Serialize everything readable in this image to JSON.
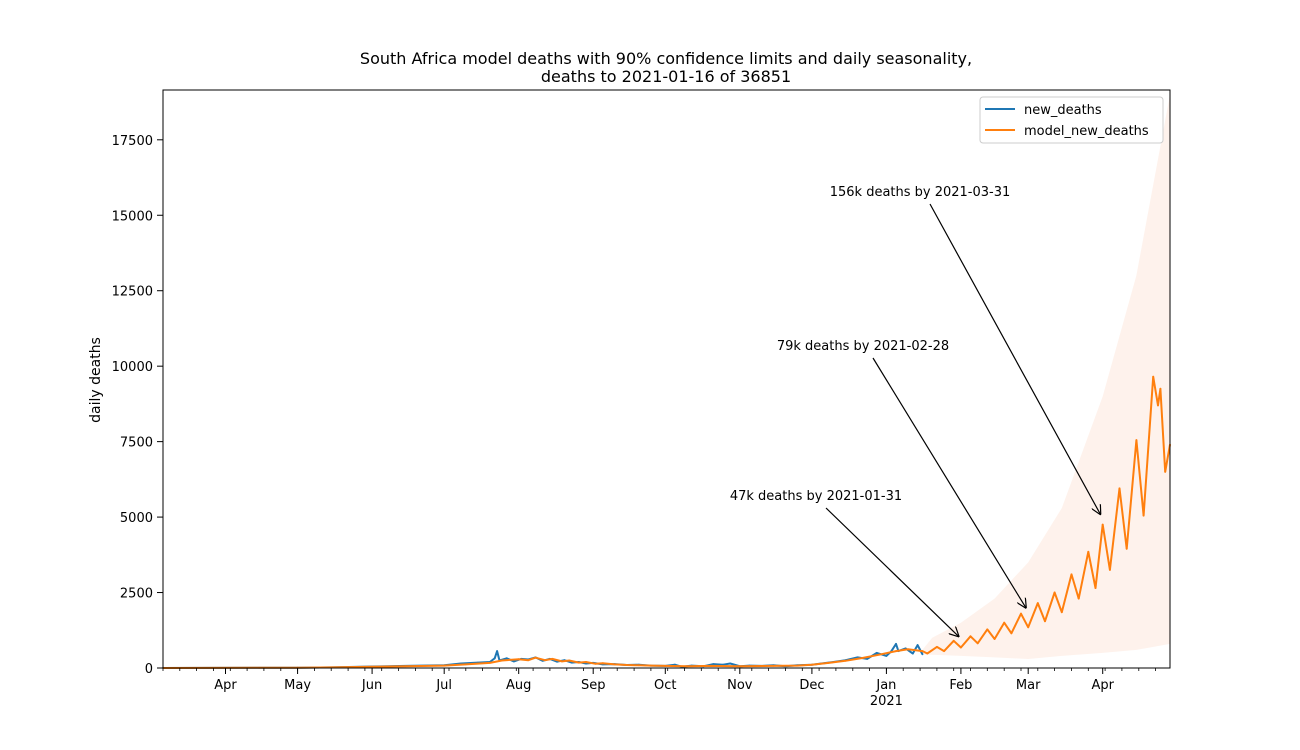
{
  "chart_data": {
    "type": "line",
    "title_line1": "South Africa model deaths with 90% confidence limits and daily seasonality,",
    "title_line2": "deaths to 2021-01-16 of 36851",
    "ylabel": "daily deaths",
    "xlabel": "",
    "ylim": [
      0,
      19150
    ],
    "xlim": [
      "2020-03-06",
      "2021-04-29"
    ],
    "yticks": [
      0,
      2500,
      5000,
      7500,
      10000,
      12500,
      15000,
      17500
    ],
    "xticks": [
      {
        "date": "2020-04-01",
        "label": "Apr"
      },
      {
        "date": "2020-05-01",
        "label": "May"
      },
      {
        "date": "2020-06-01",
        "label": "Jun"
      },
      {
        "date": "2020-07-01",
        "label": "Jul"
      },
      {
        "date": "2020-08-01",
        "label": "Aug"
      },
      {
        "date": "2020-09-01",
        "label": "Sep"
      },
      {
        "date": "2020-10-01",
        "label": "Oct"
      },
      {
        "date": "2020-11-01",
        "label": "Nov"
      },
      {
        "date": "2020-12-01",
        "label": "Dec"
      },
      {
        "date": "2021-01-01",
        "label": "Jan"
      },
      {
        "date": "2021-02-01",
        "label": "Feb"
      },
      {
        "date": "2021-03-01",
        "label": "Mar"
      },
      {
        "date": "2021-04-01",
        "label": "Apr"
      }
    ],
    "year_label": {
      "date": "2021-01-01",
      "label": "2021"
    },
    "grid": false,
    "legend_position": "top-right",
    "series": [
      {
        "name": "new_deaths",
        "color": "#1f77b4",
        "points": [
          [
            "2020-03-06",
            0
          ],
          [
            "2020-04-15",
            5
          ],
          [
            "2020-05-01",
            10
          ],
          [
            "2020-05-15",
            20
          ],
          [
            "2020-06-01",
            50
          ],
          [
            "2020-06-15",
            70
          ],
          [
            "2020-07-01",
            90
          ],
          [
            "2020-07-08",
            150
          ],
          [
            "2020-07-15",
            180
          ],
          [
            "2020-07-20",
            200
          ],
          [
            "2020-07-22",
            320
          ],
          [
            "2020-07-23",
            560
          ],
          [
            "2020-07-24",
            250
          ],
          [
            "2020-07-27",
            320
          ],
          [
            "2020-07-30",
            220
          ],
          [
            "2020-08-02",
            300
          ],
          [
            "2020-08-05",
            280
          ],
          [
            "2020-08-08",
            350
          ],
          [
            "2020-08-11",
            240
          ],
          [
            "2020-08-14",
            300
          ],
          [
            "2020-08-17",
            210
          ],
          [
            "2020-08-20",
            260
          ],
          [
            "2020-08-23",
            180
          ],
          [
            "2020-08-26",
            200
          ],
          [
            "2020-08-29",
            150
          ],
          [
            "2020-09-01",
            170
          ],
          [
            "2020-09-05",
            120
          ],
          [
            "2020-09-10",
            130
          ],
          [
            "2020-09-15",
            100
          ],
          [
            "2020-09-20",
            110
          ],
          [
            "2020-09-25",
            80
          ],
          [
            "2020-10-01",
            70
          ],
          [
            "2020-10-05",
            110
          ],
          [
            "2020-10-08",
            40
          ],
          [
            "2020-10-12",
            80
          ],
          [
            "2020-10-17",
            60
          ],
          [
            "2020-10-21",
            130
          ],
          [
            "2020-10-25",
            110
          ],
          [
            "2020-10-28",
            150
          ],
          [
            "2020-11-01",
            60
          ],
          [
            "2020-11-05",
            80
          ],
          [
            "2020-11-10",
            70
          ],
          [
            "2020-11-15",
            90
          ],
          [
            "2020-11-20",
            60
          ],
          [
            "2020-11-25",
            90
          ],
          [
            "2020-12-01",
            110
          ],
          [
            "2020-12-05",
            150
          ],
          [
            "2020-12-10",
            200
          ],
          [
            "2020-12-15",
            260
          ],
          [
            "2020-12-20",
            350
          ],
          [
            "2020-12-24",
            300
          ],
          [
            "2020-12-28",
            500
          ],
          [
            "2021-01-01",
            400
          ],
          [
            "2021-01-03",
            550
          ],
          [
            "2021-01-05",
            800
          ],
          [
            "2021-01-06",
            560
          ],
          [
            "2021-01-09",
            650
          ],
          [
            "2021-01-12",
            480
          ],
          [
            "2021-01-14",
            760
          ],
          [
            "2021-01-16",
            450
          ]
        ]
      },
      {
        "name": "model_new_deaths",
        "color": "#ff7f0e",
        "points": [
          [
            "2020-03-06",
            0
          ],
          [
            "2020-04-15",
            5
          ],
          [
            "2020-05-01",
            10
          ],
          [
            "2020-05-15",
            20
          ],
          [
            "2020-06-01",
            40
          ],
          [
            "2020-06-15",
            60
          ],
          [
            "2020-07-01",
            80
          ],
          [
            "2020-07-10",
            120
          ],
          [
            "2020-07-20",
            170
          ],
          [
            "2020-07-25",
            250
          ],
          [
            "2020-08-01",
            290
          ],
          [
            "2020-08-05",
            260
          ],
          [
            "2020-08-08",
            340
          ],
          [
            "2020-08-12",
            260
          ],
          [
            "2020-08-15",
            300
          ],
          [
            "2020-08-19",
            220
          ],
          [
            "2020-08-22",
            250
          ],
          [
            "2020-08-26",
            180
          ],
          [
            "2020-08-29",
            200
          ],
          [
            "2020-09-02",
            140
          ],
          [
            "2020-09-05",
            160
          ],
          [
            "2020-09-10",
            120
          ],
          [
            "2020-09-15",
            100
          ],
          [
            "2020-09-20",
            90
          ],
          [
            "2020-09-25",
            80
          ],
          [
            "2020-10-01",
            70
          ],
          [
            "2020-10-10",
            60
          ],
          [
            "2020-10-20",
            70
          ],
          [
            "2020-11-01",
            60
          ],
          [
            "2020-11-15",
            70
          ],
          [
            "2020-11-25",
            80
          ],
          [
            "2020-12-01",
            110
          ],
          [
            "2020-12-08",
            170
          ],
          [
            "2020-12-15",
            240
          ],
          [
            "2020-12-22",
            330
          ],
          [
            "2020-12-29",
            440
          ],
          [
            "2021-01-05",
            560
          ],
          [
            "2021-01-10",
            620
          ],
          [
            "2021-01-16",
            560
          ],
          [
            "2021-01-18",
            480
          ],
          [
            "2021-01-22",
            700
          ],
          [
            "2021-01-25",
            560
          ],
          [
            "2021-01-29",
            900
          ],
          [
            "2021-02-01",
            680
          ],
          [
            "2021-02-05",
            1050
          ],
          [
            "2021-02-08",
            820
          ],
          [
            "2021-02-12",
            1280
          ],
          [
            "2021-02-15",
            960
          ],
          [
            "2021-02-19",
            1500
          ],
          [
            "2021-02-22",
            1150
          ],
          [
            "2021-02-26",
            1800
          ],
          [
            "2021-03-01",
            1350
          ],
          [
            "2021-03-05",
            2150
          ],
          [
            "2021-03-08",
            1550
          ],
          [
            "2021-03-12",
            2500
          ],
          [
            "2021-03-15",
            1850
          ],
          [
            "2021-03-19",
            3100
          ],
          [
            "2021-03-22",
            2300
          ],
          [
            "2021-03-26",
            3850
          ],
          [
            "2021-03-29",
            2650
          ],
          [
            "2021-04-01",
            4750
          ],
          [
            "2021-04-04",
            3250
          ],
          [
            "2021-04-08",
            5950
          ],
          [
            "2021-04-11",
            3950
          ],
          [
            "2021-04-15",
            7550
          ],
          [
            "2021-04-18",
            5050
          ],
          [
            "2021-04-22",
            9650
          ],
          [
            "2021-04-24",
            8700
          ],
          [
            "2021-04-25",
            9250
          ],
          [
            "2021-04-27",
            6500
          ],
          [
            "2021-04-29",
            7400
          ]
        ]
      }
    ],
    "confidence_band": {
      "upper": [
        [
          "2021-01-16",
          600
        ],
        [
          "2021-01-20",
          1000
        ],
        [
          "2021-02-01",
          1500
        ],
        [
          "2021-02-15",
          2300
        ],
        [
          "2021-03-01",
          3500
        ],
        [
          "2021-03-15",
          5300
        ],
        [
          "2021-04-01",
          9000
        ],
        [
          "2021-04-15",
          13000
        ],
        [
          "2021-04-29",
          19000
        ]
      ],
      "lower": [
        [
          "2021-01-16",
          450
        ],
        [
          "2021-02-01",
          400
        ],
        [
          "2021-02-15",
          350
        ],
        [
          "2021-03-01",
          300
        ],
        [
          "2021-03-15",
          400
        ],
        [
          "2021-04-01",
          500
        ],
        [
          "2021-04-15",
          600
        ],
        [
          "2021-04-29",
          800
        ]
      ]
    },
    "annotations": [
      {
        "text": "47k deaths by 2021-01-31",
        "point": [
          "2021-01-31",
          1050
        ]
      },
      {
        "text": "79k deaths by 2021-02-28",
        "point": [
          "2021-02-28",
          2000
        ]
      },
      {
        "text": "156k deaths by 2021-03-31",
        "point": [
          "2021-03-31",
          5100
        ]
      }
    ]
  }
}
